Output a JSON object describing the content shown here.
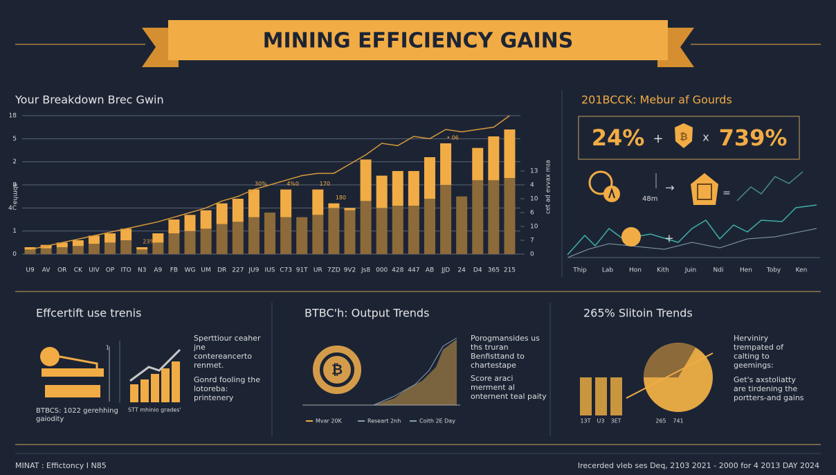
{
  "header": {
    "title": "MINING EFFICIENCY GAINS"
  },
  "chart_data": {
    "type": "bar",
    "title": "Your Breakdown Brec Gwin",
    "y_label": "ɐɥɯqs",
    "y2_label": "ɐɪɯ xɐʌʌə pɐ ʇəɔ",
    "categories": [
      "U9",
      "AV",
      "OR",
      "CK",
      "UIV",
      "OP",
      "ITO",
      "N3",
      "A9",
      "FB",
      "WG",
      "UM",
      "DR",
      "227",
      "JU9",
      "IUS",
      "C73",
      "91T",
      "UR",
      "7ZD",
      "9V2",
      "Js8",
      "000",
      "428",
      "447",
      "AB",
      "JJD",
      "24",
      "D4",
      "365",
      "215"
    ],
    "series": [
      {
        "color": "#8c6a3a",
        "values": [
          0.2,
          0.25,
          0.3,
          0.35,
          0.45,
          0.5,
          0.6,
          0.2,
          0.5,
          0.9,
          1.0,
          1.1,
          1.3,
          1.4,
          1.6,
          1.8,
          1.6,
          1.6,
          1.7,
          2.0,
          1.9,
          2.3,
          2.0,
          2.1,
          2.1,
          2.4,
          3.0,
          2.5,
          3.2,
          3.2,
          3.3
        ]
      },
      {
        "color": "#f2ac45",
        "values": [
          0.1,
          0.15,
          0.2,
          0.25,
          0.35,
          0.4,
          0.5,
          0.1,
          0.4,
          0.6,
          0.7,
          0.8,
          0.9,
          1.0,
          1.2,
          0,
          1.2,
          0,
          1.1,
          0.2,
          0.1,
          1.8,
          1.4,
          1.5,
          1.5,
          1.8,
          1.8,
          0,
          1.4,
          1.9,
          2.1
        ]
      }
    ],
    "line": {
      "color": "#d89a3a",
      "values": [
        0.2,
        0.35,
        0.5,
        0.65,
        0.8,
        0.95,
        1.1,
        1.25,
        1.4,
        1.6,
        1.8,
        2.0,
        2.3,
        2.5,
        2.8,
        3.0,
        3.2,
        3.4,
        3.5,
        3.5,
        3.9,
        4.3,
        4.8,
        4.7,
        5.1,
        5.0,
        5.4,
        5.3,
        5.4,
        5.5,
        6.0
      ]
    },
    "annotations": [
      {
        "text": "23%",
        "at": 7
      },
      {
        "text": "30%",
        "at": 14
      },
      {
        "text": "4%0",
        "at": 16
      },
      {
        "text": "170",
        "at": 18
      },
      {
        "text": "180",
        "at": 19
      },
      {
        "text": "• 06",
        "at": 26
      }
    ],
    "ylim": [
      0,
      6
    ],
    "yticks": [
      0,
      1,
      {
        "value": 2,
        "label": "4C"
      },
      {
        "value": 3,
        "label": "8"
      },
      {
        "value": 4,
        "label": "2"
      },
      {
        "value": 5,
        "label": "5"
      },
      {
        "value": 6,
        "label": "18"
      }
    ],
    "y2lim": [
      0,
      6
    ],
    "y2ticks": [
      0,
      {
        "value": 0.6,
        "label": "7"
      },
      {
        "value": 1.2,
        "label": "10"
      },
      {
        "value": 1.8,
        "label": "6"
      },
      {
        "value": 2.4,
        "label": "10"
      },
      {
        "value": 3.0,
        "label": "4"
      },
      {
        "value": 3.6,
        "label": "13"
      }
    ],
    "grid": true
  },
  "right_panel": {
    "title": "201BCCK: Mebur af Gourds",
    "metric_a": "24%",
    "plus": "+",
    "times": "x",
    "metric_b": "739%",
    "amount": "48m",
    "equals": "=",
    "plus2": "+",
    "x_labels": [
      "Thip",
      "Lab",
      "Hon",
      "Kith",
      "Juin",
      "Ndi",
      "Hen",
      "Toby",
      "Ken"
    ]
  },
  "panels": [
    {
      "title": "Effcertift use trenis",
      "text_a": "Sperttiour ceaher jne contereancerto renmet.",
      "text_b": "Gonrd fooling the lotoreba: printenery",
      "caption": "BTBCS: 1022 gerehhing gaiodity",
      "chart_label": "STT mhinio grades'",
      "tick": "1"
    },
    {
      "title": "BTBC'h: Output Trends",
      "text_a": "Porogmansides us ths truran Benfisttand to chartestape",
      "text_b": "Score araci merment al onternent teal paity",
      "legend": [
        "Mvar 20K",
        "Researt 2nh",
        "Coith 2E Day"
      ]
    },
    {
      "title": "265% Slitoin Trends",
      "text_a": "Herviniry trempated of calting to geemings:",
      "text_b": "Get's axstoliatty are tirdening the portters-and gains",
      "labels": [
        "13T",
        "U3",
        "3ET",
        "265",
        "741"
      ]
    }
  ],
  "footer": {
    "left": "MINAT : Effictoncy I N85",
    "right": "Irecerded vleb ses Deq, 2103 2021 - 2000 for 4 2013 DAY 2024"
  }
}
